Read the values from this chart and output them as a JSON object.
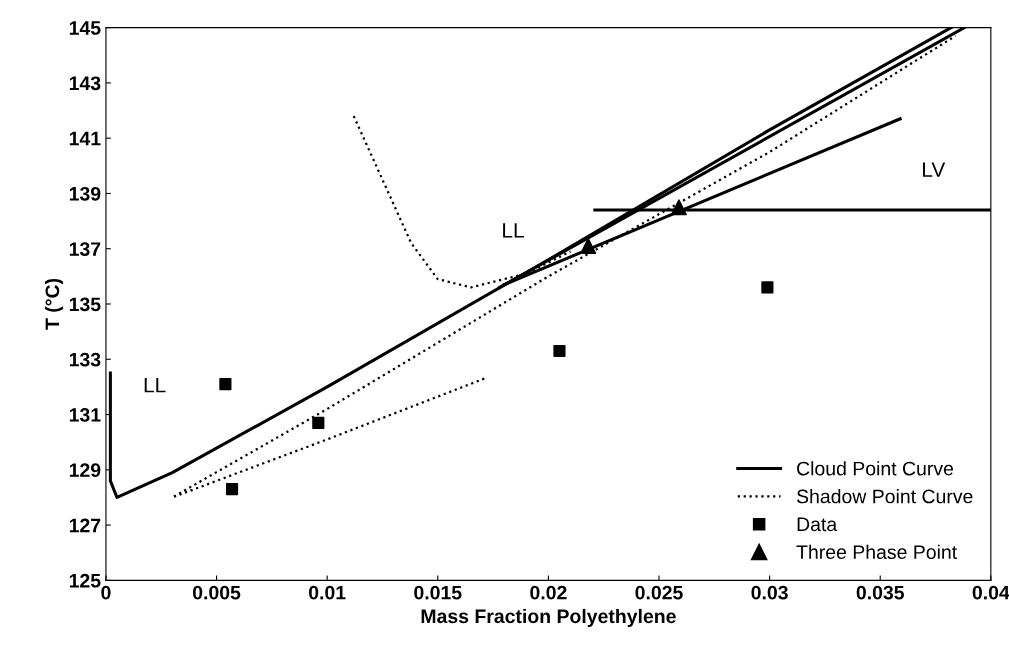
{
  "chart_data": {
    "type": "line",
    "xlabel": "Mass Fraction Polyethylene",
    "ylabel": "T (°C)",
    "xlim": [
      0,
      0.04
    ],
    "ylim": [
      125,
      145
    ],
    "xticks": [
      0,
      0.005,
      0.01,
      0.015,
      0.02,
      0.025,
      0.03,
      0.035,
      0.04
    ],
    "yticks": [
      125,
      127,
      129,
      131,
      133,
      135,
      137,
      139,
      141,
      143,
      145
    ],
    "grid": false,
    "legend": "bottom right",
    "series": [
      {
        "name": "Cloud Point Curve",
        "line_style": "solid",
        "marker": "none",
        "color": "#000000",
        "x": [
          0.0002,
          0.0002,
          0.0005,
          0.003,
          0.01,
          0.02,
          0.03,
          0.0382
        ],
        "values": [
          132.5,
          128.6,
          128.0,
          128.9,
          132.0,
          136.6,
          141.3,
          145.0
        ]
      },
      {
        "name": "Shadow Point Curve",
        "line_style": "dotted",
        "marker": "none",
        "color": "#000000",
        "x": [
          0.0171,
          0.01,
          0.003,
          0.01,
          0.02,
          0.03,
          0.0384
        ],
        "values": [
          132.3,
          130.1,
          128.0,
          131.2,
          136.0,
          140.5,
          144.7
        ]
      },
      {
        "name": "Data",
        "type": "scatter",
        "marker": "square",
        "color": "#000000",
        "x": [
          0.0054,
          0.0057,
          0.0096,
          0.0205,
          0.0299
        ],
        "values": [
          132.1,
          128.3,
          130.7,
          133.3,
          135.6
        ]
      },
      {
        "name": "Three Phase Point",
        "type": "scatter",
        "marker": "triangle",
        "color": "#000000",
        "x": [
          0.0218,
          0.0259
        ],
        "values": [
          137.1,
          138.5
        ]
      },
      {
        "line_style": "dotted",
        "marker": "none",
        "color": "#000000",
        "x": [
          0.0112,
          0.0125,
          0.0138,
          0.015,
          0.0165,
          0.019,
          0.021
        ],
        "values": [
          141.8,
          139.5,
          137.2,
          135.9,
          135.6,
          136.1,
          136.9
        ]
      },
      {
        "line_style": "solid",
        "marker": "none",
        "color": "#000000",
        "x": [
          0.0178,
          0.0388
        ],
        "values": [
          135.6,
          145.0
        ]
      },
      {
        "line_style": "solid",
        "marker": "none",
        "color": "#000000",
        "x": [
          0.018,
          0.0359
        ],
        "values": [
          135.7,
          141.7
        ]
      },
      {
        "line_style": "solid",
        "marker": "none",
        "color": "#000000",
        "x": [
          0.0221,
          0.04
        ],
        "values": [
          138.4,
          138.4
        ]
      }
    ],
    "annotations": [
      "LL",
      "LL",
      "LV"
    ]
  }
}
